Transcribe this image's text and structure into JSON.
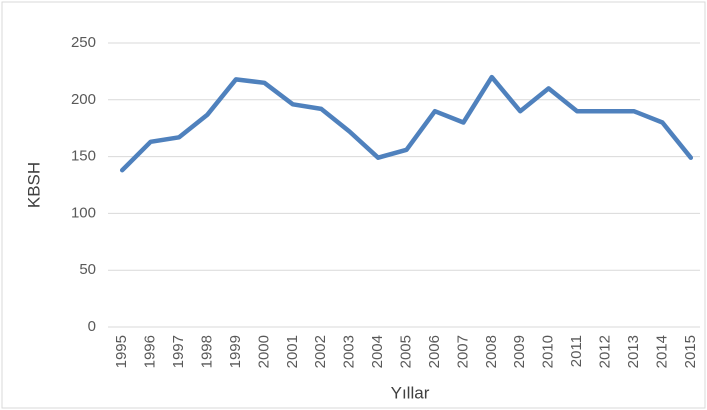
{
  "chart_data": {
    "type": "line",
    "x_label": "Yıllar",
    "y_label": "KBSH",
    "categories": [
      "1995",
      "1996",
      "1997",
      "1998",
      "1999",
      "2000",
      "2001",
      "2002",
      "2003",
      "2004",
      "2005",
      "2006",
      "2007",
      "2008",
      "2009",
      "2010",
      "2011",
      "2012",
      "2013",
      "2014",
      "2015"
    ],
    "values": [
      138,
      163,
      167,
      187,
      218,
      215,
      196,
      192,
      172,
      149,
      156,
      190,
      180,
      220,
      190,
      210,
      190,
      190,
      190,
      180,
      149
    ],
    "color": "#4f81bd",
    "ylim": [
      0,
      250
    ],
    "yticks": [
      0,
      50,
      100,
      150,
      200,
      250
    ],
    "grid": true
  }
}
